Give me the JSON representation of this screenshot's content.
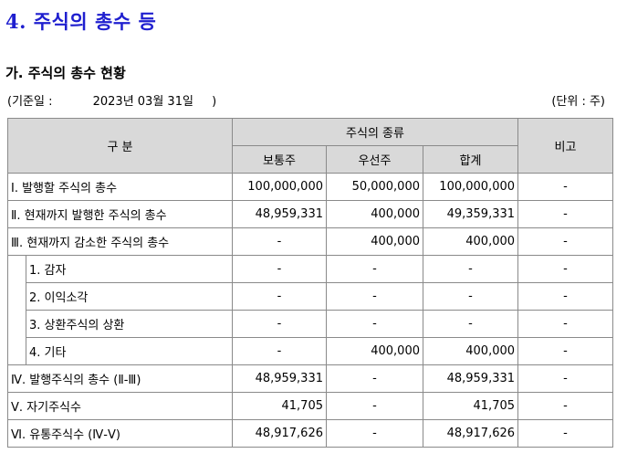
{
  "section_title": "4. 주식의 총수 등",
  "sub_title": "가. 주식의 총수 현황",
  "basis_label": "(기준일 :",
  "basis_date": "2023년 03월 31일",
  "basis_close": ")",
  "unit": "(단위 : 주)",
  "table": {
    "header": {
      "category": "구 분",
      "stock_type": "주식의 종류",
      "common": "보통주",
      "preferred": "우선주",
      "total": "합계",
      "remark": "비고"
    },
    "rows": [
      {
        "label": "Ⅰ. 발행할 주식의 총수",
        "common": "100,000,000",
        "preferred": "50,000,000",
        "total": "100,000,000",
        "remark": "-"
      },
      {
        "label": "Ⅱ. 현재까지 발행한 주식의 총수",
        "common": "48,959,331",
        "preferred": "400,000",
        "total": "49,359,331",
        "remark": "-"
      },
      {
        "label": "Ⅲ. 현재까지 감소한 주식의 총수",
        "common": "-",
        "preferred": "400,000",
        "total": "400,000",
        "remark": "-"
      },
      {
        "label": "1. 감자",
        "common": "-",
        "preferred": "-",
        "total": "-",
        "remark": "-"
      },
      {
        "label": "2. 이익소각",
        "common": "-",
        "preferred": "-",
        "total": "-",
        "remark": "-"
      },
      {
        "label": "3. 상환주식의 상환",
        "common": "-",
        "preferred": "-",
        "total": "-",
        "remark": "-"
      },
      {
        "label": "4. 기타",
        "common": "-",
        "preferred": "400,000",
        "total": "400,000",
        "remark": "-"
      },
      {
        "label": "Ⅳ. 발행주식의 총수 (Ⅱ-Ⅲ)",
        "common": "48,959,331",
        "preferred": "-",
        "total": "48,959,331",
        "remark": "-"
      },
      {
        "label": "Ⅴ. 자기주식수",
        "common": "41,705",
        "preferred": "-",
        "total": "41,705",
        "remark": "-"
      },
      {
        "label": "Ⅵ. 유통주식수 (Ⅳ-Ⅴ)",
        "common": "48,917,626",
        "preferred": "-",
        "total": "48,917,626",
        "remark": "-"
      }
    ]
  }
}
